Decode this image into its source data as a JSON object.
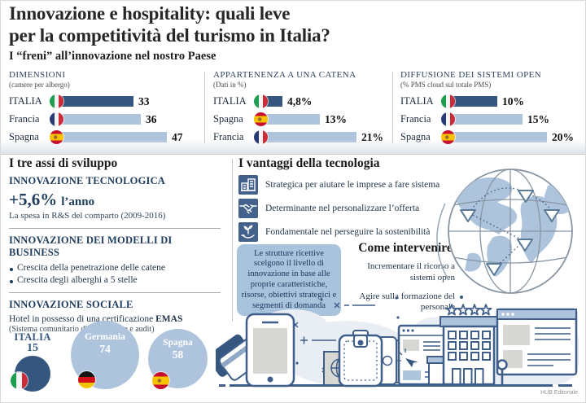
{
  "title": {
    "line1": "Innovazione e hospitality: quali leve",
    "line2": "per la competitività del turismo in Italia?"
  },
  "colors": {
    "dark_blue": "#35567F",
    "light_blue": "#AEC4DD",
    "navy_text": "#1E3C5C",
    "icon_blue": "#44618C",
    "note_box_blue": "#A9C3DD"
  },
  "freni": {
    "heading": "I “freni” all’innovazione nel nostro Paese"
  },
  "chart_data": [
    {
      "type": "bar",
      "title": "DIMENSIONI",
      "subtitle": "(camere per albergo)",
      "categories": [
        "ITALIA",
        "Francia",
        "Spagna"
      ],
      "flags": [
        "it",
        "fr",
        "es"
      ],
      "values": [
        33,
        36,
        47
      ],
      "value_labels": [
        "33",
        "36",
        "47"
      ],
      "highlight_index": 0,
      "xlim": [
        0,
        47
      ],
      "legend": "none",
      "grid": false
    },
    {
      "type": "bar",
      "title": "APPARTENENZA A UNA CATENA",
      "subtitle": "(Dati in %)",
      "categories": [
        "ITALIA",
        "Spagna",
        "Francia"
      ],
      "flags": [
        "it",
        "es",
        "fr"
      ],
      "values": [
        4.8,
        13,
        21
      ],
      "value_labels": [
        "4,8%",
        "13%",
        "21%"
      ],
      "highlight_index": 0,
      "xlim": [
        0,
        21
      ],
      "legend": "none",
      "grid": false
    },
    {
      "type": "bar",
      "title": "DIFFUSIONE DEI SISTEMI OPEN",
      "subtitle": "(% PMS cloud sul totale PMS)",
      "categories": [
        "ITALIA",
        "Francia",
        "Spagna"
      ],
      "flags": [
        "it",
        "fr",
        "es"
      ],
      "values": [
        10,
        15,
        20
      ],
      "value_labels": [
        "10%",
        "15%",
        "20%"
      ],
      "highlight_index": 0,
      "xlim": [
        0,
        20
      ],
      "legend": "none",
      "grid": false
    },
    {
      "type": "bubble",
      "title": "Hotel in possesso di una certificazione EMAS",
      "categories": [
        "ITALIA",
        "Germania",
        "Spagna"
      ],
      "flags": [
        "it",
        "de",
        "es"
      ],
      "values": [
        15,
        74,
        58
      ],
      "highlight_index": 0
    }
  ],
  "assi": {
    "heading": "I tre assi di sviluppo",
    "tec": {
      "title": "INNOVAZIONE TECNOLOGICA",
      "big": "+5,6%",
      "big_suffix": "l’anno",
      "caption": "La spesa in R&S del comparto (2009-2016)"
    },
    "business": {
      "title": "INNOVAZIONE DEI MODELLI DI BUSINESS",
      "bullets": [
        "Crescita della penetrazione delle catene",
        "Crescita degli alberghi a 5 stelle"
      ]
    },
    "sociale": {
      "title": "INNOVAZIONE SOCIALE",
      "line1": "Hotel in possesso di una certificazione ",
      "line1_bold": "EMAS",
      "line2": "(Sistema comunitario di ecogestione e audit)"
    }
  },
  "vantaggi": {
    "heading": "I vantaggi della tecnologia",
    "items": [
      {
        "icon": "buildings-icon",
        "label": "Strategica per aiutare le imprese a fare sistema"
      },
      {
        "icon": "handshake-icon",
        "label": "Determinante nel personalizzare l’offerta"
      },
      {
        "icon": "plant-hand-icon",
        "label": "Fondamentale nel perseguire la sostenibilità"
      }
    ],
    "note": "Le strutture ricettive scelgono il livello di innovazione in base alle proprie caratteristiche, risorse, obiettivi strategici e segmenti di domanda"
  },
  "intervenire": {
    "heading": "Come intervenire",
    "items": [
      "Incrementare il ricorso a sistemi open",
      "Agire sulla formazione del personale"
    ]
  },
  "credit": "HUB Editoriale"
}
